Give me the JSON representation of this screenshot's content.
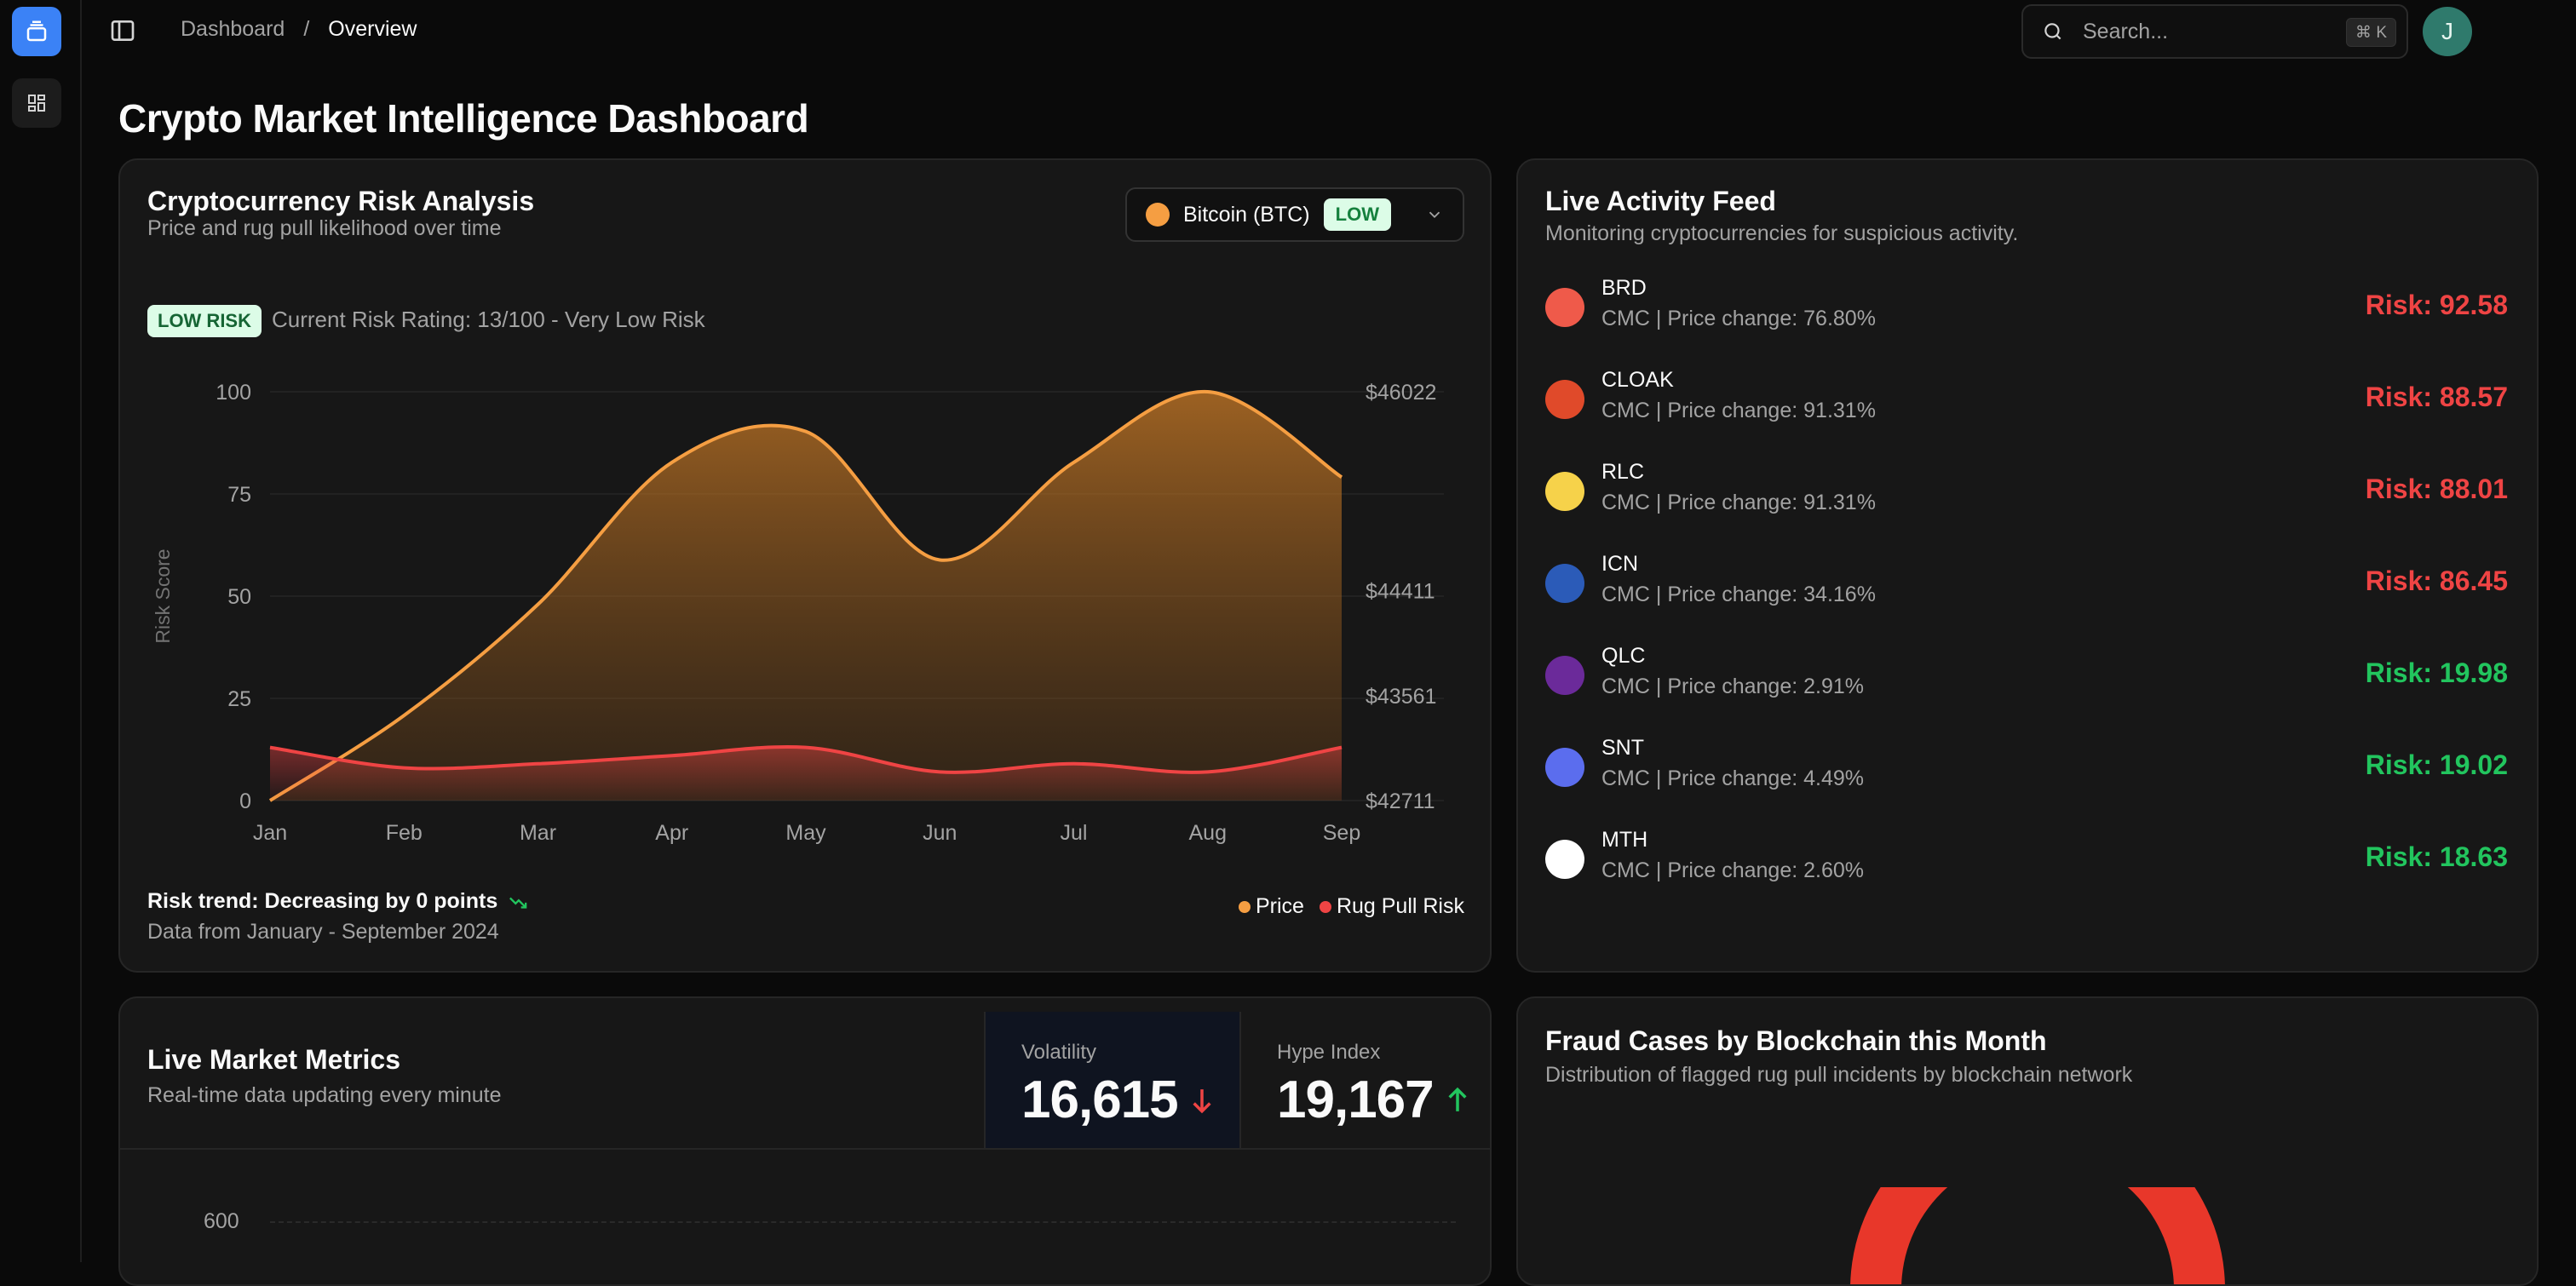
{
  "breadcrumb": {
    "root": "Dashboard",
    "separator": "/",
    "current": "Overview"
  },
  "search": {
    "placeholder": "Search...",
    "shortcut": "⌘ K"
  },
  "user": {
    "initial": "J"
  },
  "page": {
    "title": "Crypto Market Intelligence Dashboard"
  },
  "risk_card": {
    "title": "Cryptocurrency Risk Analysis",
    "subtitle": "Price and rug pull likelihood over time",
    "selector": {
      "coin": "Bitcoin (BTC)",
      "level": "LOW"
    },
    "badge": "LOW RISK",
    "rating_text": "Current Risk Rating: 13/100 - Very Low Risk",
    "trend": "Risk trend: Decreasing by 0 points",
    "trend_icon": "trend-down-icon",
    "range": "Data from January - September 2024",
    "legend": [
      "Price",
      "Rug Pull Risk"
    ]
  },
  "chart_data": {
    "type": "area",
    "x": [
      "Jan",
      "Feb",
      "Mar",
      "Apr",
      "May",
      "Jun",
      "Jul",
      "Aug",
      "Sep"
    ],
    "ylabel": "Risk Score",
    "ylim": [
      0,
      100
    ],
    "yticks": [
      0,
      25,
      50,
      75,
      100
    ],
    "y2ticks": [
      "$42711",
      "$43561",
      "$44411",
      "$46022"
    ],
    "y2ticks_value": [
      42711,
      43561,
      44411,
      46022
    ],
    "y2lim": [
      42711,
      46022
    ],
    "grid": true,
    "series": [
      {
        "name": "Price",
        "axis": "right",
        "color": "#f59e42",
        "values": [
          42711,
          43400,
          44300,
          45450,
          45700,
          44660,
          45450,
          46022,
          45330
        ]
      },
      {
        "name": "Rug Pull Risk",
        "axis": "left",
        "color": "#ef4444",
        "values": [
          13,
          8,
          9,
          11,
          13,
          7,
          9,
          7,
          13
        ]
      }
    ]
  },
  "feed": {
    "title": "Live Activity Feed",
    "subtitle": "Monitoring cryptocurrencies for suspicious activity.",
    "items": [
      {
        "symbol": "BRD",
        "meta": "CMC | Price change: 76.80%",
        "risk": "Risk: 92.58",
        "level": "high",
        "icon": "brd-logo-icon",
        "color": "#ef5a4a"
      },
      {
        "symbol": "CLOAK",
        "meta": "CMC | Price change: 91.31%",
        "risk": "Risk: 88.57",
        "level": "high",
        "icon": "cloak-logo-icon",
        "color": "#e04a2a"
      },
      {
        "symbol": "RLC",
        "meta": "CMC | Price change: 91.31%",
        "risk": "Risk: 88.01",
        "level": "high",
        "icon": "rlc-logo-icon",
        "color": "#f6d24a"
      },
      {
        "symbol": "ICN",
        "meta": "CMC | Price change: 34.16%",
        "risk": "Risk: 86.45",
        "level": "high",
        "icon": "icn-logo-icon",
        "color": "#2b5bb8"
      },
      {
        "symbol": "QLC",
        "meta": "CMC | Price change: 2.91%",
        "risk": "Risk: 19.98",
        "level": "low",
        "icon": "qlc-logo-icon",
        "color": "#6b2a9a"
      },
      {
        "symbol": "SNT",
        "meta": "CMC | Price change: 4.49%",
        "risk": "Risk: 19.02",
        "level": "low",
        "icon": "snt-logo-icon",
        "color": "#5b6dee"
      },
      {
        "symbol": "MTH",
        "meta": "CMC | Price change: 2.60%",
        "risk": "Risk: 18.63",
        "level": "low",
        "icon": "mth-logo-icon",
        "color": "#ffffff"
      }
    ]
  },
  "metrics": {
    "title": "Live Market Metrics",
    "subtitle": "Real-time data updating every minute",
    "volatility": {
      "label": "Volatility",
      "value": "16,615",
      "direction": "down"
    },
    "hype": {
      "label": "Hype Index",
      "value": "19,167",
      "direction": "up"
    },
    "axis_tick": "600"
  },
  "fraud": {
    "title": "Fraud Cases by Blockchain this Month",
    "subtitle": "Distribution of flagged rug pull incidents by blockchain network",
    "ring_color": "#e8372a"
  }
}
